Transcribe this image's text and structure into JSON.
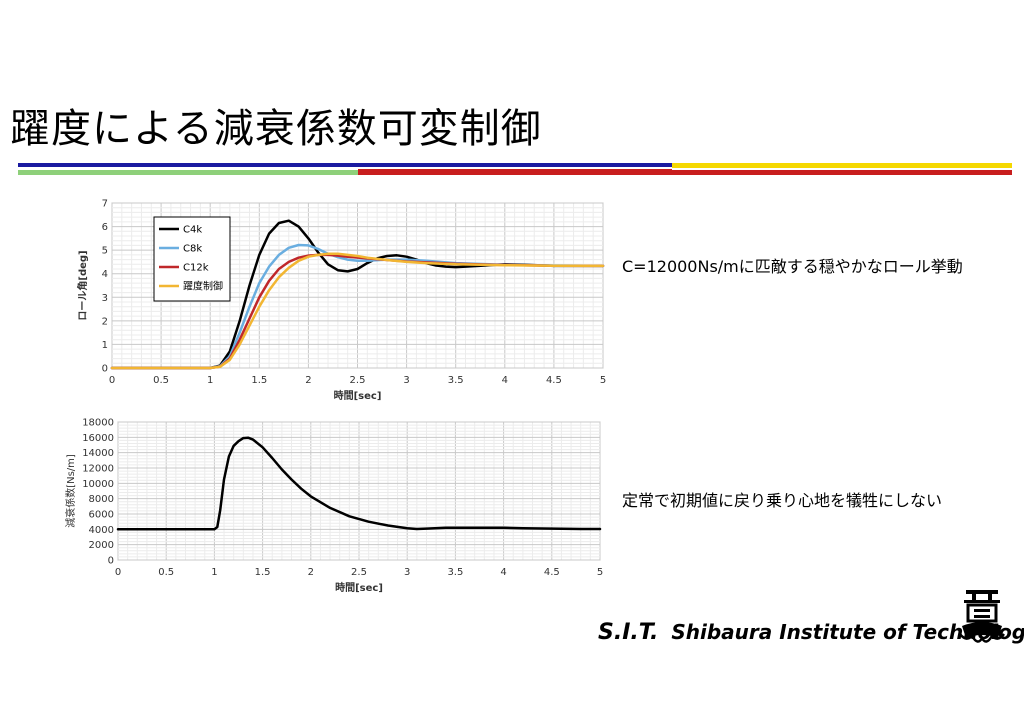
{
  "title": "躍度による減衰係数可変制御",
  "colors": {
    "bar_top_blue": "#1a1aa0",
    "bar_mid_red": "#c81e1e",
    "bar_yellow": "#f5d800",
    "bar_green": "#8ed07a",
    "grid": "#d9d9d9",
    "axis": "#a0a0a0"
  },
  "notes": {
    "right_top": "C=12000Ns/mに匹敵する穏やかなロール挙動",
    "right_bottom": "定常で初期値に戻り乗り心地を犠牲にしない"
  },
  "footer": {
    "abbr": "S.I.T.",
    "name": "Shibaura Institute of Technology",
    "crest_icon": "university-crest-icon"
  },
  "chart_data": [
    {
      "type": "line",
      "title": "",
      "xlabel": "時間[sec]",
      "ylabel": "ロール角[deg]",
      "xlim": [
        0,
        5
      ],
      "ylim": [
        0,
        7
      ],
      "xticks": [
        "0",
        "0.5",
        "1",
        "1.5",
        "2",
        "2.5",
        "3",
        "3.5",
        "4",
        "4.5",
        "5"
      ],
      "yticks": [
        "0",
        "1",
        "2",
        "3",
        "4",
        "5",
        "6",
        "7"
      ],
      "grid": true,
      "legend": "top-left",
      "series": [
        {
          "name": "C4k",
          "color": "#000000",
          "x": [
            0,
            1.0,
            1.1,
            1.2,
            1.3,
            1.4,
            1.5,
            1.6,
            1.7,
            1.8,
            1.9,
            2.0,
            2.1,
            2.2,
            2.3,
            2.4,
            2.5,
            2.6,
            2.7,
            2.8,
            2.9,
            3.0,
            3.1,
            3.2,
            3.3,
            3.4,
            3.5,
            3.6,
            3.8,
            4.0,
            4.2,
            4.5,
            5.0
          ],
          "y": [
            0,
            0,
            0.1,
            0.7,
            2.0,
            3.5,
            4.8,
            5.7,
            6.15,
            6.25,
            6.0,
            5.5,
            4.9,
            4.4,
            4.15,
            4.1,
            4.2,
            4.45,
            4.65,
            4.75,
            4.78,
            4.72,
            4.6,
            4.45,
            4.35,
            4.3,
            4.28,
            4.3,
            4.35,
            4.4,
            4.38,
            4.33,
            4.33
          ]
        },
        {
          "name": "C8k",
          "color": "#6aaee0",
          "x": [
            0,
            1.0,
            1.1,
            1.2,
            1.3,
            1.4,
            1.5,
            1.6,
            1.7,
            1.8,
            1.9,
            2.0,
            2.1,
            2.2,
            2.3,
            2.4,
            2.5,
            2.6,
            2.8,
            3.0,
            3.2,
            3.5,
            4.0,
            4.5,
            5.0
          ],
          "y": [
            0,
            0,
            0.08,
            0.5,
            1.5,
            2.6,
            3.6,
            4.3,
            4.8,
            5.1,
            5.22,
            5.2,
            5.05,
            4.85,
            4.7,
            4.6,
            4.55,
            4.55,
            4.6,
            4.6,
            4.55,
            4.45,
            4.38,
            4.35,
            4.33
          ]
        },
        {
          "name": "C12k",
          "color": "#c0282a",
          "x": [
            0,
            1.0,
            1.1,
            1.2,
            1.3,
            1.4,
            1.5,
            1.6,
            1.7,
            1.8,
            1.9,
            2.0,
            2.1,
            2.2,
            2.3,
            2.4,
            2.6,
            2.8,
            3.0,
            3.2,
            3.5,
            4.0,
            4.5,
            5.0
          ],
          "y": [
            0,
            0,
            0.06,
            0.4,
            1.2,
            2.1,
            3.0,
            3.7,
            4.2,
            4.5,
            4.68,
            4.77,
            4.8,
            4.8,
            4.77,
            4.72,
            4.65,
            4.58,
            4.52,
            4.48,
            4.42,
            4.37,
            4.34,
            4.33
          ]
        },
        {
          "name": "躍度制御",
          "color": "#f2b632",
          "x": [
            0,
            1.0,
            1.1,
            1.2,
            1.3,
            1.4,
            1.5,
            1.6,
            1.7,
            1.8,
            1.9,
            2.0,
            2.1,
            2.2,
            2.3,
            2.4,
            2.5,
            2.6,
            2.8,
            3.0,
            3.2,
            3.5,
            4.0,
            4.5,
            5.0
          ],
          "y": [
            0,
            0,
            0.05,
            0.35,
            1.0,
            1.8,
            2.6,
            3.3,
            3.85,
            4.25,
            4.55,
            4.72,
            4.8,
            4.85,
            4.85,
            4.8,
            4.75,
            4.68,
            4.58,
            4.5,
            4.45,
            4.4,
            4.36,
            4.34,
            4.33
          ]
        }
      ]
    },
    {
      "type": "line",
      "title": "",
      "xlabel": "時間[sec]",
      "ylabel": "減衰係数[Ns/m]",
      "xlim": [
        0,
        5
      ],
      "ylim": [
        0,
        18000
      ],
      "xticks": [
        "0",
        "0.5",
        "1",
        "1.5",
        "2",
        "2.5",
        "3",
        "3.5",
        "4",
        "4.5",
        "5"
      ],
      "yticks": [
        "0",
        "2000",
        "4000",
        "6000",
        "8000",
        "10000",
        "12000",
        "14000",
        "16000",
        "18000"
      ],
      "grid": true,
      "series": [
        {
          "name": "",
          "color": "#000000",
          "x": [
            0,
            1.0,
            1.03,
            1.06,
            1.1,
            1.15,
            1.2,
            1.25,
            1.3,
            1.35,
            1.4,
            1.5,
            1.6,
            1.7,
            1.8,
            1.9,
            2.0,
            2.2,
            2.4,
            2.6,
            2.8,
            3.0,
            3.1,
            3.2,
            3.4,
            3.6,
            3.8,
            4.0,
            4.2,
            4.5,
            4.8,
            5.0
          ],
          "y": [
            4000,
            4000,
            4300,
            6500,
            10500,
            13500,
            14900,
            15500,
            15900,
            15950,
            15700,
            14700,
            13300,
            11800,
            10500,
            9300,
            8300,
            6800,
            5700,
            5000,
            4500,
            4150,
            4050,
            4100,
            4200,
            4200,
            4200,
            4200,
            4150,
            4100,
            4050,
            4050
          ]
        }
      ]
    }
  ]
}
